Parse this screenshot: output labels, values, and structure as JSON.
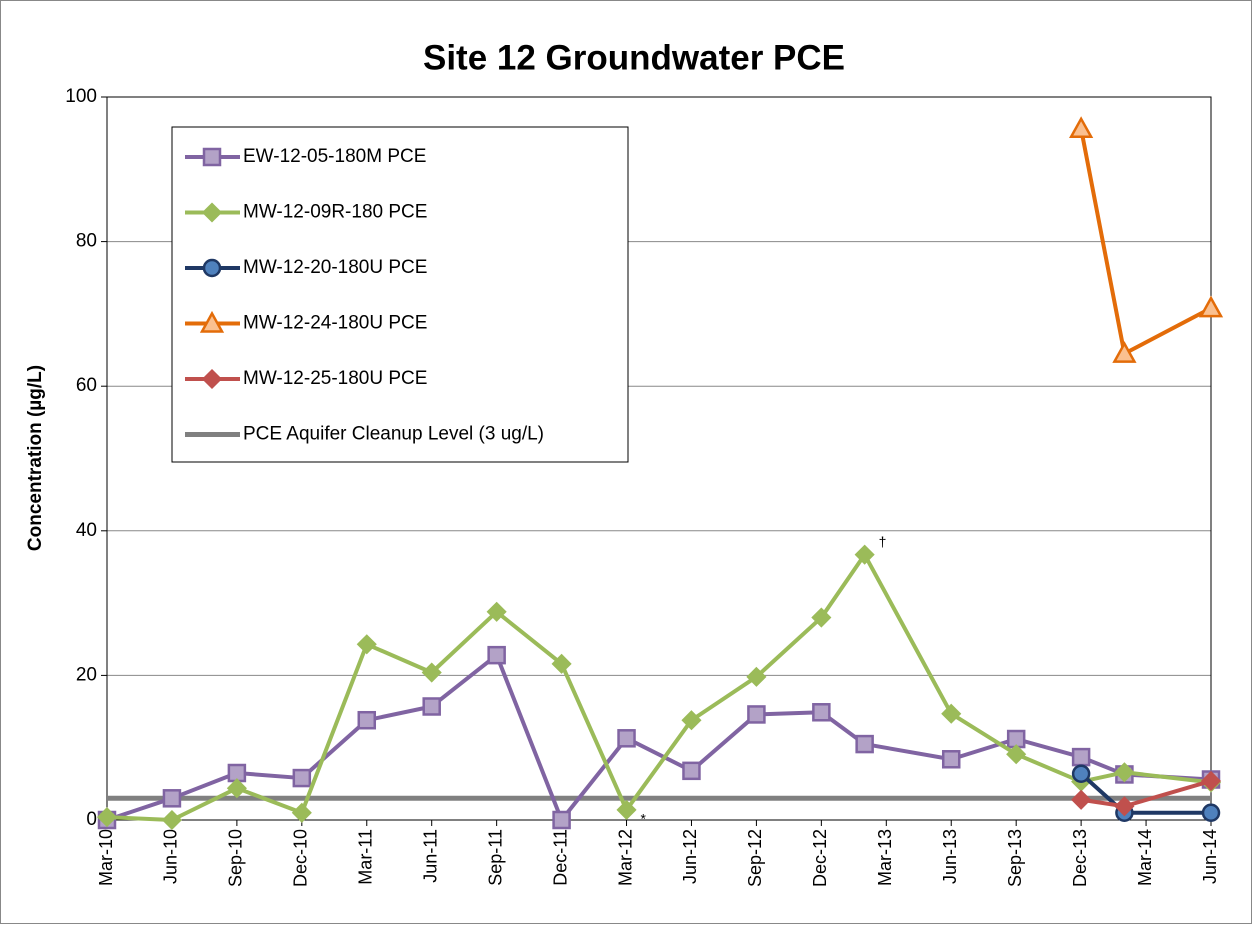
{
  "chart_data": {
    "type": "line",
    "title": "Site 12 Groundwater PCE",
    "y_label": "Concentration (µg/L)",
    "x": [
      "2010-03",
      "2010-06",
      "2010-09",
      "2010-12",
      "2011-03",
      "2011-06",
      "2011-09",
      "2011-12",
      "2012-03",
      "2012-06",
      "2012-09",
      "2012-12",
      "2013-02",
      "2013-06",
      "2013-09",
      "2013-12",
      "2014-02",
      "2014-06"
    ],
    "xlim": [
      "2010-03",
      "2014-06"
    ],
    "xticks": [
      {
        "value": "2010-03",
        "label": "Mar-10"
      },
      {
        "value": "2010-06",
        "label": "Jun-10"
      },
      {
        "value": "2010-09",
        "label": "Sep-10"
      },
      {
        "value": "2010-12",
        "label": "Dec-10"
      },
      {
        "value": "2011-03",
        "label": "Mar-11"
      },
      {
        "value": "2011-06",
        "label": "Jun-11"
      },
      {
        "value": "2011-09",
        "label": "Sep-11"
      },
      {
        "value": "2011-12",
        "label": "Dec-11"
      },
      {
        "value": "2012-03",
        "label": "Mar-12"
      },
      {
        "value": "2012-06",
        "label": "Jun-12"
      },
      {
        "value": "2012-09",
        "label": "Sep-12"
      },
      {
        "value": "2012-12",
        "label": "Dec-12"
      },
      {
        "value": "2013-03",
        "label": "Mar-13"
      },
      {
        "value": "2013-06",
        "label": "Jun-13"
      },
      {
        "value": "2013-09",
        "label": "Sep-13"
      },
      {
        "value": "2013-12",
        "label": "Dec-13"
      },
      {
        "value": "2014-03",
        "label": "Mar-14"
      },
      {
        "value": "2014-06",
        "label": "Jun-14"
      }
    ],
    "ylim": [
      0,
      100
    ],
    "yticks": [
      0,
      20,
      40,
      60,
      80,
      100
    ],
    "grid": true,
    "series": [
      {
        "name": "EW-12-05-180M PCE",
        "color": "#8064a2",
        "marker": "square",
        "marker_fill": "#b3a2c7",
        "values": [
          0,
          3,
          6.5,
          5.8,
          13.8,
          15.7,
          22.8,
          0,
          11.3,
          6.8,
          14.6,
          14.9,
          10.5,
          8.4,
          11.2,
          8.7,
          6.3,
          5.6
        ]
      },
      {
        "name": "MW-12-09R-180 PCE",
        "color": "#9bbb59",
        "marker": "diamond",
        "marker_fill": "#9bbb59",
        "values": [
          0.4,
          0,
          4.4,
          1,
          24.3,
          20.4,
          28.8,
          21.6,
          1.4,
          13.8,
          19.8,
          28,
          36.7,
          14.7,
          9.1,
          5.3,
          6.6,
          5.2
        ],
        "notes": [
          null,
          null,
          null,
          null,
          null,
          null,
          null,
          null,
          "*",
          null,
          null,
          null,
          "†",
          null,
          null,
          null,
          null,
          null
        ]
      },
      {
        "name": "MW-12-20-180U PCE",
        "color": "#1f3864",
        "marker": "circle",
        "marker_fill": "#4f81bd",
        "values": [
          null,
          null,
          null,
          null,
          null,
          null,
          null,
          null,
          null,
          null,
          null,
          null,
          null,
          null,
          null,
          6.4,
          1,
          1
        ]
      },
      {
        "name": "MW-12-24-180U PCE",
        "color": "#e36c09",
        "marker": "triangle",
        "marker_fill": "#fac090",
        "values": [
          null,
          null,
          null,
          null,
          null,
          null,
          null,
          null,
          null,
          null,
          null,
          null,
          null,
          null,
          null,
          95.6,
          64.5,
          70.8
        ]
      },
      {
        "name": "MW-12-25-180U PCE",
        "color": "#c0504d",
        "marker": "diamond",
        "marker_fill": "#c0504d",
        "values": [
          null,
          null,
          null,
          null,
          null,
          null,
          null,
          null,
          null,
          null,
          null,
          null,
          null,
          null,
          null,
          2.8,
          1.9,
          5.4
        ]
      }
    ],
    "reference_line": {
      "name": "PCE Aquifer Cleanup Level (3 ug/L)",
      "value": 3,
      "color": "#808080"
    }
  }
}
